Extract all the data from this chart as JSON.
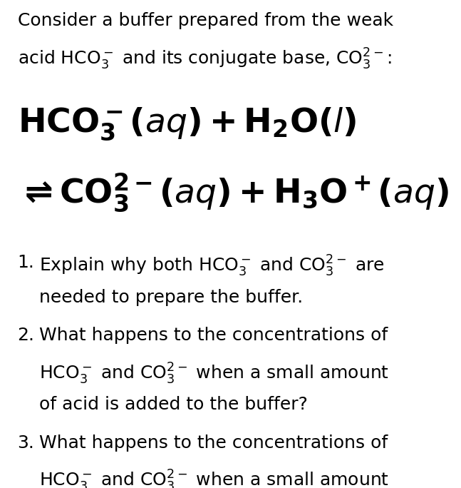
{
  "bg_color": "#ffffff",
  "text_color": "#000000",
  "figsize": [
    6.47,
    6.84
  ],
  "dpi": 100,
  "intro_line1": "Consider a buffer prepared from the weak",
  "intro_line2_plain": "acid HCO",
  "intro_line2_rest": " and its conjugate base, CO",
  "eq1_text": "$\\mathbf{HCO_3^{\\boldsymbol{-}}(\\textit{aq}) + H_2O(\\textit{l})}$",
  "eq2_text": "$\\mathbf{\\rightleftharpoons CO_3^{2-}(\\textit{aq}) + H_3O^{+}(\\textit{aq})}$",
  "body_intro_fs": 18,
  "eq_fs": 34,
  "body_fs": 18
}
